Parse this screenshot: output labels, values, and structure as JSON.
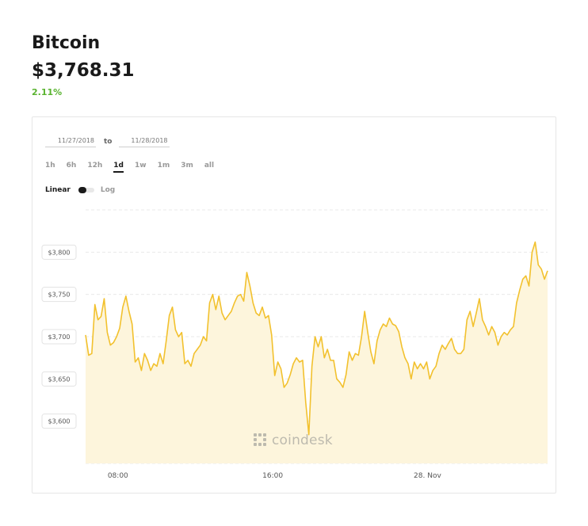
{
  "header": {
    "name": "Bitcoin",
    "price": "$3,768.31",
    "change": "2.11%"
  },
  "controls": {
    "date_from": "11/27/2018",
    "date_to": "11/28/2018",
    "to_label": "to",
    "ranges": [
      "1h",
      "6h",
      "12h",
      "1d",
      "1w",
      "1m",
      "3m",
      "all"
    ],
    "active_range": "1d",
    "scale_linear": "Linear",
    "scale_log": "Log",
    "active_scale": "Linear"
  },
  "watermark": "coindesk",
  "colors": {
    "line": "#f2c12e",
    "area": "#fdf5dc",
    "change_positive": "#59b32f"
  },
  "chart_data": {
    "type": "area",
    "series": [
      {
        "values": [
          3702,
          3678,
          3680,
          3738,
          3720,
          3724,
          3745,
          3705,
          3690,
          3693,
          3700,
          3710,
          3735,
          3748,
          3730,
          3715,
          3670,
          3675,
          3660,
          3680,
          3672,
          3660,
          3668,
          3665,
          3680,
          3668,
          3695,
          3725,
          3735,
          3708,
          3700,
          3705,
          3668,
          3672,
          3665,
          3680,
          3685,
          3690,
          3700,
          3695,
          3740,
          3750,
          3732,
          3748,
          3728,
          3720,
          3725,
          3730,
          3740,
          3748,
          3750,
          3742,
          3776,
          3760,
          3740,
          3728,
          3725,
          3735,
          3722,
          3725,
          3702,
          3654,
          3670,
          3662,
          3640,
          3645,
          3655,
          3668,
          3675,
          3670,
          3672,
          3622,
          3584,
          3665,
          3700,
          3688,
          3700,
          3675,
          3685,
          3672,
          3672,
          3650,
          3646,
          3640,
          3655,
          3682,
          3672,
          3680,
          3678,
          3700,
          3730,
          3705,
          3682,
          3668,
          3695,
          3708,
          3715,
          3712,
          3722,
          3715,
          3713,
          3706,
          3688,
          3675,
          3668,
          3650,
          3670,
          3662,
          3668,
          3662,
          3670,
          3650,
          3660,
          3665,
          3680,
          3690,
          3685,
          3692,
          3698,
          3685,
          3680,
          3680,
          3685,
          3720,
          3730,
          3712,
          3728,
          3745,
          3720,
          3712,
          3702,
          3712,
          3705,
          3690,
          3700,
          3705,
          3702,
          3708,
          3712,
          3740,
          3755,
          3768,
          3772,
          3760,
          3800,
          3812,
          3785,
          3780,
          3768,
          3778
        ]
      }
    ],
    "x_tick_labels": [
      "08:00",
      "16:00",
      "28. Nov"
    ],
    "x_tick_fractions": [
      0.07,
      0.405,
      0.74
    ],
    "y_ticks": [
      3600,
      3650,
      3700,
      3750,
      3800
    ],
    "y_tick_labels": [
      "$3,600",
      "$3,650",
      "$3,700",
      "$3,750",
      "$3,800"
    ],
    "ylim": [
      3550,
      3850
    ],
    "grid": true
  }
}
